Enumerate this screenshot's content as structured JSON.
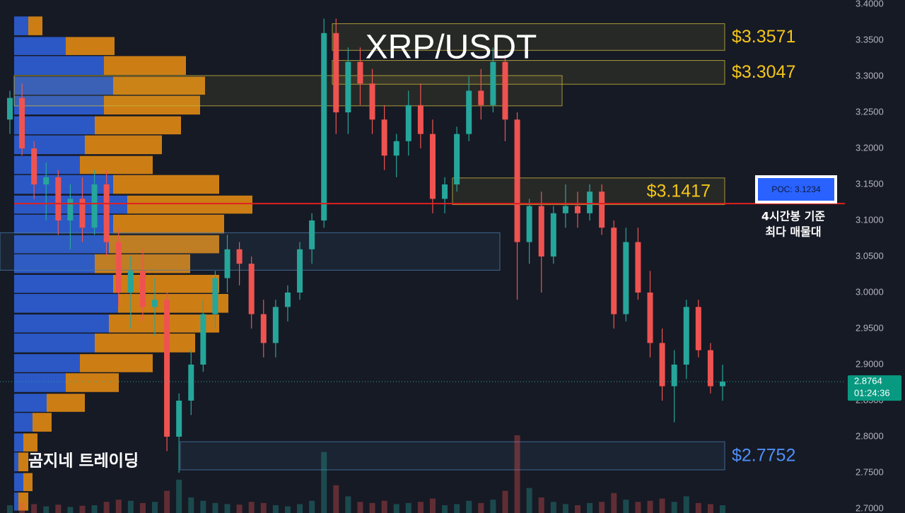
{
  "chart_data": {
    "type": "candlestick",
    "title": "XRP/USDT",
    "watermark": "곰지네 트레이딩",
    "colors": {
      "up": "#26a69a",
      "down": "#ef5350"
    },
    "open": [
      3.24,
      3.27,
      3.2,
      3.15,
      3.16,
      3.1,
      3.13,
      3.09,
      3.15,
      3.07,
      3.0,
      3.03,
      2.98,
      2.99,
      2.8,
      2.85,
      2.9,
      2.97,
      3.02,
      3.06,
      3.04,
      2.97,
      2.93,
      2.98,
      3.0,
      3.06,
      3.1,
      3.36,
      3.25,
      3.32,
      3.29,
      3.24,
      3.19,
      3.21,
      3.26,
      3.22,
      3.13,
      3.15,
      3.22,
      3.28,
      3.26,
      3.32,
      3.24,
      3.07,
      3.12,
      3.05,
      3.11,
      3.12,
      3.11,
      3.14,
      3.09,
      2.97,
      3.07,
      3.0,
      2.93,
      2.87,
      2.9,
      2.98,
      2.92,
      2.87
    ],
    "high": [
      3.28,
      3.29,
      3.21,
      3.18,
      3.17,
      3.15,
      3.16,
      3.17,
      3.17,
      3.09,
      3.05,
      3.06,
      3.02,
      3.0,
      2.86,
      2.92,
      2.99,
      3.03,
      3.08,
      3.07,
      3.05,
      2.99,
      2.99,
      3.01,
      3.07,
      3.11,
      3.38,
      3.38,
      3.34,
      3.34,
      3.31,
      3.26,
      3.22,
      3.28,
      3.29,
      3.24,
      3.16,
      3.23,
      3.3,
      3.31,
      3.34,
      3.33,
      3.25,
      3.13,
      3.14,
      3.12,
      3.15,
      3.14,
      3.15,
      3.15,
      3.1,
      3.09,
      3.09,
      3.03,
      2.95,
      2.92,
      2.99,
      2.99,
      2.93,
      2.9
    ],
    "low": [
      3.22,
      3.19,
      3.13,
      3.1,
      3.08,
      3.06,
      3.07,
      3.08,
      3.05,
      2.98,
      2.95,
      2.96,
      2.94,
      2.78,
      2.75,
      2.83,
      2.89,
      2.95,
      3.0,
      3.01,
      2.95,
      2.91,
      2.91,
      2.96,
      2.99,
      3.04,
      3.09,
      3.22,
      3.22,
      3.26,
      3.22,
      3.17,
      3.16,
      3.19,
      3.2,
      3.11,
      3.11,
      3.14,
      3.21,
      3.24,
      3.25,
      3.21,
      2.99,
      3.04,
      3.0,
      3.04,
      3.09,
      3.09,
      3.1,
      3.08,
      2.95,
      2.96,
      2.99,
      2.91,
      2.85,
      2.82,
      2.88,
      2.91,
      2.86,
      2.85
    ],
    "close": [
      3.27,
      3.2,
      3.15,
      3.16,
      3.1,
      3.13,
      3.09,
      3.15,
      3.07,
      3.0,
      3.03,
      2.98,
      2.99,
      2.8,
      2.85,
      2.9,
      2.97,
      3.02,
      3.06,
      3.04,
      2.97,
      2.93,
      2.98,
      3.0,
      3.06,
      3.1,
      3.36,
      3.25,
      3.32,
      3.29,
      3.24,
      3.19,
      3.21,
      3.26,
      3.22,
      3.13,
      3.15,
      3.22,
      3.28,
      3.26,
      3.32,
      3.24,
      3.07,
      3.12,
      3.05,
      3.11,
      3.12,
      3.11,
      3.14,
      3.09,
      2.97,
      3.07,
      3.0,
      2.93,
      2.87,
      2.9,
      2.98,
      2.92,
      2.87,
      2.8764
    ],
    "volume": [
      14,
      18,
      16,
      12,
      15,
      11,
      13,
      14,
      20,
      24,
      22,
      18,
      20,
      40,
      60,
      28,
      22,
      18,
      16,
      15,
      20,
      18,
      14,
      12,
      16,
      22,
      110,
      50,
      30,
      20,
      18,
      22,
      16,
      18,
      20,
      26,
      14,
      16,
      22,
      18,
      24,
      40,
      140,
      45,
      28,
      20,
      16,
      14,
      18,
      20,
      36,
      24,
      20,
      22,
      26,
      20,
      30,
      18,
      16,
      14
    ],
    "ylim": [
      2.7,
      3.4
    ],
    "yticks": [
      {
        "value": 2.7,
        "label": "2.7000"
      },
      {
        "value": 2.75,
        "label": "2.7500"
      },
      {
        "value": 2.8,
        "label": "2.8000"
      },
      {
        "value": 2.85,
        "label": "2.8500"
      },
      {
        "value": 2.9,
        "label": "2.9000"
      },
      {
        "value": 2.95,
        "label": "2.9500"
      },
      {
        "value": 3.0,
        "label": "3.0000"
      },
      {
        "value": 3.05,
        "label": "3.0500"
      },
      {
        "value": 3.1,
        "label": "3.1000"
      },
      {
        "value": 3.15,
        "label": "3.1500"
      },
      {
        "value": 3.2,
        "label": "3.2000"
      },
      {
        "value": 3.25,
        "label": "3.2500"
      },
      {
        "value": 3.3,
        "label": "3.3000"
      },
      {
        "value": 3.35,
        "label": "3.3500"
      },
      {
        "value": 3.4,
        "label": "3.4000"
      }
    ],
    "volume_profile": {
      "prices": [
        3.37,
        3.342,
        3.315,
        3.287,
        3.26,
        3.232,
        3.205,
        3.177,
        3.15,
        3.122,
        3.095,
        3.067,
        3.04,
        3.012,
        2.985,
        2.957,
        2.93,
        2.902,
        2.875,
        2.847,
        2.82,
        2.792,
        2.765,
        2.737,
        2.71
      ],
      "buy": [
        20,
        73,
        127,
        140,
        127,
        114,
        100,
        93,
        140,
        160,
        140,
        134,
        114,
        140,
        147,
        134,
        114,
        93,
        73,
        46,
        26,
        13,
        6,
        13,
        6
      ],
      "sell": [
        20,
        69,
        116,
        130,
        136,
        122,
        109,
        103,
        150,
        177,
        157,
        156,
        135,
        150,
        156,
        156,
        142,
        103,
        75,
        54,
        27,
        20,
        14,
        13,
        14
      ],
      "colors": {
        "buy": "#2f5fd8",
        "sell": "#e08a14"
      }
    },
    "zones": [
      {
        "top": 3.373,
        "bottom": 3.336,
        "color": "#c8b43c",
        "label": "$3.3571"
      },
      {
        "top": 3.322,
        "bottom": 3.289,
        "color": "#c8b43c",
        "label": "$3.3047"
      },
      {
        "top": 3.301,
        "bottom": 3.259,
        "color": "#c8b43c"
      },
      {
        "top": 3.159,
        "bottom": 3.122,
        "color": "#c8b43c",
        "label": "$3.1417"
      },
      {
        "top": 3.083,
        "bottom": 3.031,
        "color": "#4a7ba8"
      },
      {
        "top": 2.793,
        "bottom": 2.754,
        "color": "#4a7ba8",
        "label": "$2.7752"
      }
    ],
    "poc": {
      "value": 3.1234,
      "label": "POC: 3.1234",
      "note": [
        "4시간봉 기준",
        "최다 매물대"
      ]
    },
    "last_price": {
      "value": 2.8764,
      "countdown": "01:24:36"
    }
  }
}
